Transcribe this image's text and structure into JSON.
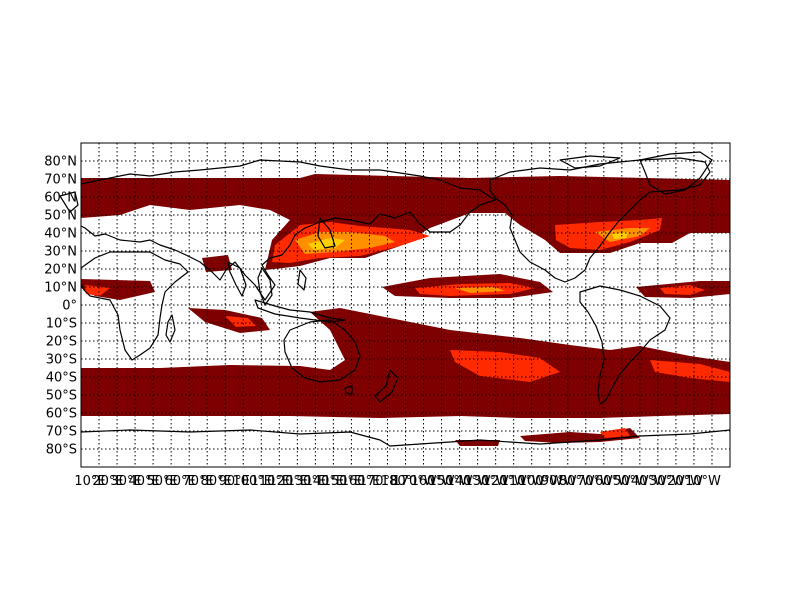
{
  "colors": {
    "low": "#7f0000",
    "mid": "#ff2a00",
    "high": "#ff9000",
    "peak": "#ffd000",
    "land_outline": "#000000",
    "background": "#ffffff"
  },
  "chart_data": {
    "type": "heatmap",
    "projection": "cylindrical",
    "grid": true,
    "lon_range": [
      10,
      370
    ],
    "lat_range": [
      -90,
      90
    ],
    "lat_ticks": [
      "80°N",
      "70°N",
      "60°N",
      "50°N",
      "40°N",
      "30°N",
      "20°N",
      "10°N",
      "0°",
      "10°S",
      "20°S",
      "30°S",
      "40°S",
      "50°S",
      "60°S",
      "70°S",
      "80°S"
    ],
    "lon_ticks": [
      "10°E",
      "20°E",
      "30°E",
      "40°E",
      "50°E",
      "60°E",
      "70°E",
      "80°E",
      "90°E",
      "100°E",
      "110°E",
      "120°E",
      "130°E",
      "140°E",
      "150°E",
      "160°E",
      "170°E",
      "180°",
      "170°W",
      "160°W",
      "150°W",
      "140°W",
      "130°W",
      "120°W",
      "110°W",
      "100°W",
      "90°W",
      "80°W",
      "70°W",
      "60°W",
      "50°W",
      "40°W",
      "30°W",
      "20°W",
      "10°W"
    ],
    "levels": [
      "low",
      "mid",
      "high",
      "peak"
    ]
  }
}
